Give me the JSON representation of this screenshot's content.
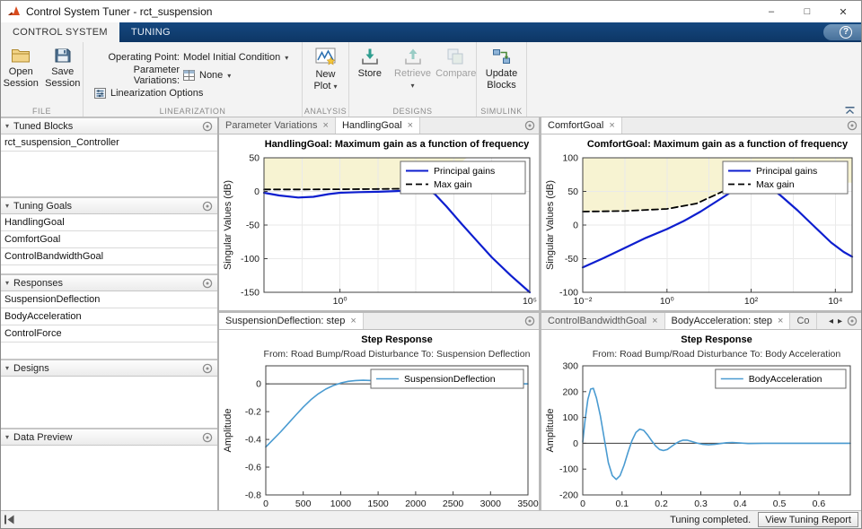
{
  "window": {
    "title": "Control System Tuner - rct_suspension"
  },
  "glyphs": {
    "window_min": "–",
    "window_max": "□",
    "window_close": "✕",
    "help": "?",
    "dropdown": "▾",
    "panel_collapse": "▾",
    "tab_close": "×",
    "tab_prev": "◂",
    "tab_next": "▸"
  },
  "ribbon": {
    "tabs": [
      {
        "label": "CONTROL SYSTEM"
      },
      {
        "label": "TUNING"
      }
    ]
  },
  "toolbar": {
    "file": {
      "section_label": "FILE",
      "open_button": "Open Session",
      "save_button": "Save Session"
    },
    "linearization": {
      "section_label": "LINEARIZATION",
      "operating_point_label": "Operating Point:",
      "operating_point_value": "Model Initial Condition",
      "parameter_variations_label": "Parameter Variations:",
      "parameter_variations_value": "None",
      "options_button": "Linearization Options"
    },
    "analysis": {
      "section_label": "ANALYSIS",
      "new_plot_button": "New Plot"
    },
    "designs": {
      "section_label": "DESIGNS",
      "store_button": "Store",
      "retrieve_button": "Retrieve",
      "compare_button": "Compare"
    },
    "simulink": {
      "section_label": "SIMULINK",
      "update_blocks_button": "Update Blocks"
    }
  },
  "sidebar": {
    "panels": [
      {
        "title": "Tuned Blocks",
        "items": [
          "rct_suspension_Controller"
        ]
      },
      {
        "title": "Tuning Goals",
        "items": [
          "HandlingGoal",
          "ComfortGoal",
          "ControlBandwidthGoal"
        ]
      },
      {
        "title": "Responses",
        "items": [
          "SuspensionDeflection",
          "BodyAcceleration",
          "ControlForce"
        ]
      },
      {
        "title": "Designs",
        "items": []
      },
      {
        "title": "Data Preview",
        "items": []
      }
    ]
  },
  "panels": {
    "top_left": {
      "tabs": [
        {
          "label": "Parameter Variations"
        },
        {
          "label": "HandlingGoal"
        }
      ]
    },
    "top_right": {
      "tabs": [
        {
          "label": "ComfortGoal"
        }
      ]
    },
    "bottom_left": {
      "tabs": [
        {
          "label": "SuspensionDeflection: step"
        }
      ]
    },
    "bottom_right": {
      "tabs": [
        {
          "label": "ControlBandwidthGoal"
        },
        {
          "label": "BodyAcceleration: step"
        },
        {
          "label": "Co"
        }
      ]
    }
  },
  "statusbar": {
    "message": "Tuning completed.",
    "report_button": "View Tuning Report"
  },
  "chart_data": [
    {
      "type": "line",
      "title": "HandlingGoal: Maximum gain as a function of frequency",
      "ylabel": "Singular Values (dB)",
      "xscale": "log10",
      "xlim": [
        -2,
        5
      ],
      "ylim": [
        -150,
        50
      ],
      "xticks": [
        {
          "v": 0,
          "label": "10⁰"
        },
        {
          "v": 5,
          "label": "10⁵"
        }
      ],
      "yticks": [
        50,
        0,
        -50,
        -100,
        -150
      ],
      "bound_color": "#f7f3d2",
      "bound_region": [
        [
          -2,
          50
        ],
        [
          -2,
          4
        ],
        [
          2.2,
          4
        ],
        [
          3.35,
          50
        ]
      ],
      "series": [
        {
          "name": "Principal gains",
          "color": "#0d1ecf",
          "width": 2.2,
          "points": [
            [
              -2,
              -2
            ],
            [
              -1.6,
              -6
            ],
            [
              -1.1,
              -9
            ],
            [
              -0.7,
              -8
            ],
            [
              -0.3,
              -4
            ],
            [
              0,
              -2
            ],
            [
              0.5,
              -1
            ],
            [
              1,
              -0.5
            ],
            [
              1.5,
              0.5
            ],
            [
              2,
              2
            ],
            [
              2.25,
              3.5
            ],
            [
              2.5,
              -4
            ],
            [
              2.8,
              -22
            ],
            [
              3.2,
              -48
            ],
            [
              3.6,
              -73
            ],
            [
              4,
              -98
            ],
            [
              4.5,
              -125
            ],
            [
              5,
              -150
            ]
          ]
        },
        {
          "name": "Max gain",
          "color": "#000000",
          "width": 1.8,
          "dash": "7,4",
          "points": [
            [
              -2,
              3
            ],
            [
              -1,
              3
            ],
            [
              0,
              3.2
            ],
            [
              1,
              3.6
            ],
            [
              2.2,
              4.2
            ]
          ]
        }
      ]
    },
    {
      "type": "line",
      "title": "ComfortGoal: Maximum gain as a function of frequency",
      "ylabel": "Singular Values (dB)",
      "xscale": "log10",
      "xlim": [
        -2,
        4.4
      ],
      "ylim": [
        -100,
        100
      ],
      "xticks": [
        {
          "v": -2,
          "label": "10⁻²"
        },
        {
          "v": 0,
          "label": "10⁰"
        },
        {
          "v": 2,
          "label": "10²"
        },
        {
          "v": 4,
          "label": "10⁴"
        }
      ],
      "yticks": [
        100,
        50,
        0,
        -50,
        -100
      ],
      "bound_color": "#f7f3d2",
      "bound_region": [
        [
          -2,
          100
        ],
        [
          -2,
          20
        ],
        [
          -1,
          21
        ],
        [
          0,
          24
        ],
        [
          0.7,
          32
        ],
        [
          1.4,
          52
        ],
        [
          1.8,
          61
        ],
        [
          2.1,
          63
        ],
        [
          4.4,
          63
        ],
        [
          4.4,
          100
        ]
      ],
      "series": [
        {
          "name": "Principal gains",
          "color": "#0d1ecf",
          "width": 2.2,
          "points": [
            [
              -2,
              -63
            ],
            [
              -1.5,
              -49
            ],
            [
              -1,
              -34
            ],
            [
              -0.5,
              -19
            ],
            [
              0,
              -6
            ],
            [
              0.4,
              6
            ],
            [
              0.8,
              20
            ],
            [
              1.2,
              36
            ],
            [
              1.6,
              52
            ],
            [
              1.9,
              61
            ],
            [
              2.1,
              64
            ],
            [
              2.35,
              60
            ],
            [
              2.7,
              44
            ],
            [
              3.1,
              22
            ],
            [
              3.5,
              -2
            ],
            [
              3.9,
              -26
            ],
            [
              4.2,
              -40
            ],
            [
              4.4,
              -47
            ]
          ]
        },
        {
          "name": "Max gain",
          "color": "#000000",
          "width": 1.8,
          "dash": "7,4",
          "points": [
            [
              -2,
              20
            ],
            [
              -1,
              21
            ],
            [
              0,
              24
            ],
            [
              0.7,
              32
            ],
            [
              1.4,
              52
            ],
            [
              1.8,
              61
            ],
            [
              2.1,
              63
            ],
            [
              2.6,
              63
            ]
          ]
        }
      ]
    },
    {
      "type": "line",
      "title": "Step Response",
      "subtitle": "From: Road Bump/Road Disturbance  To: Suspension Deflection",
      "ylabel": "Amplitude",
      "xscale": "linear",
      "xlim": [
        0,
        3500
      ],
      "ylim": [
        -0.8,
        0.13
      ],
      "xticks": [
        {
          "v": 0,
          "label": "0"
        },
        {
          "v": 500,
          "label": "500"
        },
        {
          "v": 1000,
          "label": "1000"
        },
        {
          "v": 1500,
          "label": "1500"
        },
        {
          "v": 2000,
          "label": "2000"
        },
        {
          "v": 2500,
          "label": "2500"
        },
        {
          "v": 3000,
          "label": "3000"
        },
        {
          "v": 3500,
          "label": "3500"
        }
      ],
      "yticks": [
        0,
        -0.2,
        -0.4,
        -0.6,
        -0.8
      ],
      "zero_line": true,
      "series": [
        {
          "name": "SuspensionDeflection",
          "color": "#4a9bd1",
          "width": 1.6,
          "points": [
            [
              0,
              -0.455
            ],
            [
              100,
              -0.4
            ],
            [
              200,
              -0.345
            ],
            [
              300,
              -0.285
            ],
            [
              400,
              -0.225
            ],
            [
              500,
              -0.168
            ],
            [
              600,
              -0.115
            ],
            [
              700,
              -0.072
            ],
            [
              800,
              -0.038
            ],
            [
              900,
              -0.012
            ],
            [
              1000,
              0.006
            ],
            [
              1100,
              0.018
            ],
            [
              1200,
              0.024
            ],
            [
              1300,
              0.026
            ],
            [
              1450,
              0.023
            ],
            [
              1600,
              0.017
            ],
            [
              1800,
              0.009
            ],
            [
              2000,
              0.004
            ],
            [
              2300,
              0.001
            ],
            [
              2600,
              0
            ],
            [
              3500,
              0
            ]
          ]
        }
      ]
    },
    {
      "type": "line",
      "title": "Step Response",
      "subtitle": "From: Road Bump/Road Disturbance  To: Body Acceleration",
      "ylabel": "Amplitude",
      "xscale": "linear",
      "xlim": [
        0,
        0.68
      ],
      "ylim": [
        -200,
        300
      ],
      "xticks": [
        {
          "v": 0,
          "label": "0"
        },
        {
          "v": 0.1,
          "label": "0.1"
        },
        {
          "v": 0.2,
          "label": "0.2"
        },
        {
          "v": 0.3,
          "label": "0.3"
        },
        {
          "v": 0.4,
          "label": "0.4"
        },
        {
          "v": 0.5,
          "label": "0.5"
        },
        {
          "v": 0.6,
          "label": "0.6"
        }
      ],
      "yticks": [
        300,
        200,
        100,
        0,
        -100,
        -200
      ],
      "zero_line": true,
      "series": [
        {
          "name": "BodyAcceleration",
          "color": "#4a9bd1",
          "width": 1.6,
          "points": [
            [
              0,
              5
            ],
            [
              0.006,
              90
            ],
            [
              0.013,
              170
            ],
            [
              0.02,
              210
            ],
            [
              0.027,
              213
            ],
            [
              0.035,
              175
            ],
            [
              0.045,
              105
            ],
            [
              0.055,
              15
            ],
            [
              0.065,
              -75
            ],
            [
              0.075,
              -125
            ],
            [
              0.085,
              -140
            ],
            [
              0.095,
              -125
            ],
            [
              0.105,
              -85
            ],
            [
              0.115,
              -35
            ],
            [
              0.125,
              10
            ],
            [
              0.135,
              42
            ],
            [
              0.145,
              55
            ],
            [
              0.155,
              50
            ],
            [
              0.165,
              32
            ],
            [
              0.175,
              10
            ],
            [
              0.185,
              -10
            ],
            [
              0.195,
              -24
            ],
            [
              0.205,
              -28
            ],
            [
              0.215,
              -24
            ],
            [
              0.225,
              -13
            ],
            [
              0.235,
              -2
            ],
            [
              0.245,
              7
            ],
            [
              0.255,
              12
            ],
            [
              0.265,
              12
            ],
            [
              0.275,
              8
            ],
            [
              0.29,
              1
            ],
            [
              0.305,
              -4
            ],
            [
              0.32,
              -6
            ],
            [
              0.335,
              -4
            ],
            [
              0.35,
              -1
            ],
            [
              0.365,
              2
            ],
            [
              0.38,
              3
            ],
            [
              0.4,
              1
            ],
            [
              0.42,
              -1
            ],
            [
              0.46,
              0
            ],
            [
              0.55,
              0
            ],
            [
              0.68,
              0
            ]
          ]
        }
      ]
    }
  ]
}
